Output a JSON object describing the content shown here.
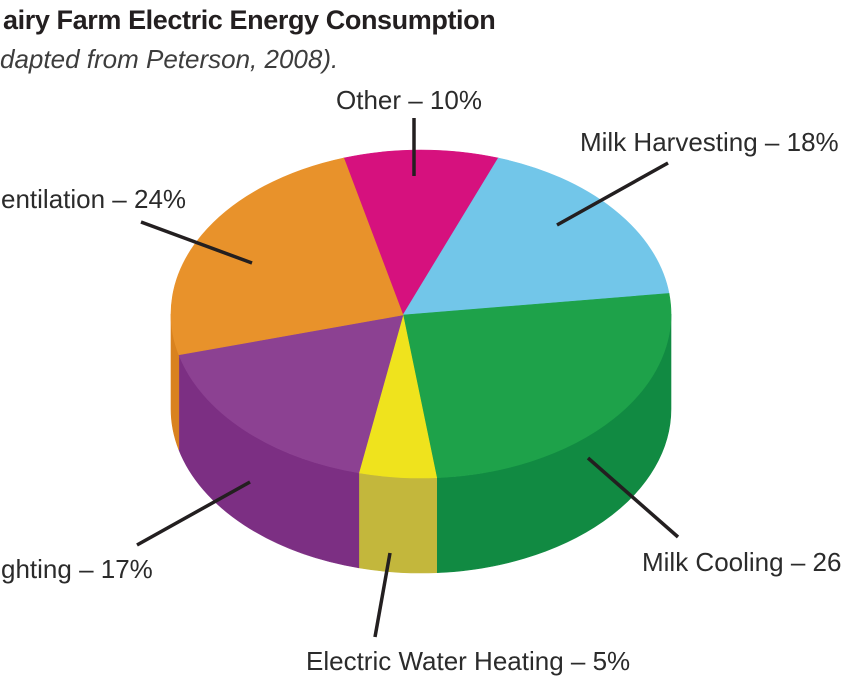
{
  "header": {
    "title": "airy Farm Electric Energy Consumption",
    "subtitle": "dapted from Peterson, 2008)."
  },
  "chart_data": {
    "type": "pie",
    "style": "3d-extruded",
    "start_angle_deg": -18,
    "clockwise_from_top": true,
    "legend_position": "callout-labels",
    "segments": [
      {
        "label": "Other",
        "pct": 10,
        "display": "Other – 10%",
        "color": "#D6117E",
        "side_color": "#AD0E66"
      },
      {
        "label": "Milk Harvesting",
        "pct": 18,
        "display": "Milk Harvesting – 18%",
        "color": "#72C6E9",
        "side_color": "#56A8CE"
      },
      {
        "label": "Milk Cooling",
        "pct": 26,
        "display": "Milk Cooling – 26",
        "color": "#1EA24A",
        "side_color": "#118A42"
      },
      {
        "label": "Electric Water Heating",
        "pct": 5,
        "display": "Electric Water Heating – 5%",
        "color": "#EFE31D",
        "side_color": "#C3B73C"
      },
      {
        "label": "Lighting",
        "pct": 17,
        "display": "ghting – 17%",
        "color": "#8C4192",
        "side_color": "#7C2F83"
      },
      {
        "label": "Ventilation",
        "pct": 24,
        "display": "entilation – 24%",
        "color": "#E8922B",
        "side_color": "#D9821F"
      }
    ]
  },
  "colors": {
    "background": "#FFFFFF",
    "title_text": "#231F20",
    "subtitle_text": "#3D3D3D",
    "label_text": "#2B2B2B",
    "leader_line": "#231F20"
  }
}
